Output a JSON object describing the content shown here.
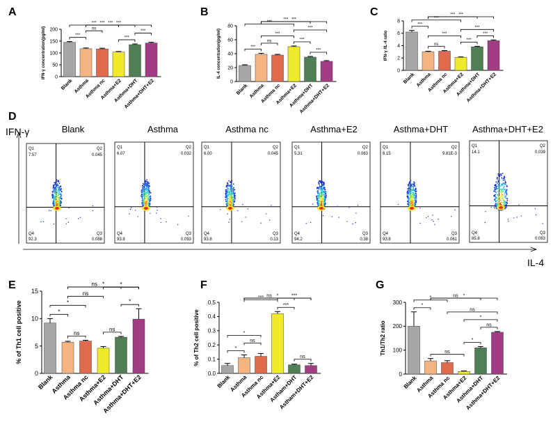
{
  "panel_letters": {
    "A": "A",
    "B": "B",
    "C": "C",
    "D": "D",
    "E": "E",
    "F": "F",
    "G": "G"
  },
  "chart_data": [
    {
      "id": "A",
      "type": "bar",
      "ylabel": "IFN-γ concentration(pg/ml)",
      "categories": [
        "Blank",
        "Asthma",
        "Asthma nc",
        "Asthma+E2",
        "Asthma+DHT",
        "Asthma+DHT+E2"
      ],
      "values": [
        145,
        118,
        117,
        104,
        135,
        142
      ],
      "errors": [
        3,
        3,
        3,
        2,
        3,
        3
      ],
      "colors": [
        "#a6a6a6",
        "#f3b47f",
        "#e06a4c",
        "#f0ea2a",
        "#4f7f55",
        "#a23c84"
      ],
      "ylim": [
        0,
        200
      ],
      "yticks": [
        0,
        50,
        100,
        150,
        200
      ],
      "brackets": [
        {
          "a": 0,
          "b": 1,
          "label": "***"
        },
        {
          "a": 0,
          "b": 3,
          "label": "***"
        },
        {
          "a": 1,
          "b": 2,
          "label": "ns"
        },
        {
          "a": 1,
          "b": 3,
          "label": "***"
        },
        {
          "a": 1,
          "b": 4,
          "label": "***"
        },
        {
          "a": 1,
          "b": 5,
          "label": "***"
        },
        {
          "a": 3,
          "b": 4,
          "label": "***"
        },
        {
          "a": 4,
          "b": 5,
          "label": "***"
        }
      ]
    },
    {
      "id": "B",
      "type": "bar",
      "ylabel": "IL-4 concentration(pg/ml)",
      "categories": [
        "Blank",
        "Asthma",
        "Asthma nc",
        "Asthma+E2",
        "Asthma+DHT",
        "Asthma+DHT+E2"
      ],
      "values": [
        23,
        39,
        38,
        50,
        35,
        29
      ],
      "errors": [
        1,
        1.5,
        1,
        1,
        1,
        1
      ],
      "colors": [
        "#a6a6a6",
        "#f3b47f",
        "#e06a4c",
        "#f0ea2a",
        "#4f7f55",
        "#a23c84"
      ],
      "ylim": [
        0,
        80
      ],
      "yticks": [
        0,
        20,
        40,
        60,
        80
      ],
      "brackets": [
        {
          "a": 0,
          "b": 1,
          "label": "***"
        },
        {
          "a": 0,
          "b": 3,
          "label": "***"
        },
        {
          "a": 1,
          "b": 2,
          "label": "ns"
        },
        {
          "a": 1,
          "b": 3,
          "label": "***"
        },
        {
          "a": 1,
          "b": 4,
          "label": "***"
        },
        {
          "a": 1,
          "b": 5,
          "label": "***"
        },
        {
          "a": 3,
          "b": 4,
          "label": "***"
        },
        {
          "a": 3,
          "b": 5,
          "label": "***"
        },
        {
          "a": 4,
          "b": 5,
          "label": "***"
        }
      ]
    },
    {
      "id": "C",
      "type": "bar",
      "ylabel": "IFN-γ /IL-4 ratio",
      "categories": [
        "Blank",
        "Asthma",
        "Asthma nc",
        "Asthma+E2",
        "Asthma+DHT",
        "Asthma+DHT+E2"
      ],
      "values": [
        6.2,
        3.0,
        3.1,
        2.1,
        3.8,
        4.8
      ],
      "errors": [
        0.25,
        0.1,
        0.1,
        0.08,
        0.1,
        0.12
      ],
      "colors": [
        "#a6a6a6",
        "#f3b47f",
        "#e06a4c",
        "#f0ea2a",
        "#4f7f55",
        "#a23c84"
      ],
      "ylim": [
        0,
        8
      ],
      "yticks": [
        0,
        2,
        4,
        6,
        8
      ],
      "brackets": [
        {
          "a": 0,
          "b": 1,
          "label": "***"
        },
        {
          "a": 0,
          "b": 3,
          "label": "***"
        },
        {
          "a": 1,
          "b": 2,
          "label": "ns"
        },
        {
          "a": 1,
          "b": 3,
          "label": "***"
        },
        {
          "a": 1,
          "b": 4,
          "label": "***"
        },
        {
          "a": 1,
          "b": 5,
          "label": "***"
        },
        {
          "a": 3,
          "b": 4,
          "label": "***"
        },
        {
          "a": 3,
          "b": 5,
          "label": "***"
        },
        {
          "a": 4,
          "b": 5,
          "label": "***"
        }
      ]
    },
    {
      "id": "E",
      "type": "bar",
      "ylabel": "% of Th1 cell positive",
      "categories": [
        "Blank",
        "Asthma",
        "Asthma nc",
        "Asthma+E2",
        "Asthma+DHT",
        "Asthma+DHT+E2"
      ],
      "values": [
        9.2,
        5.7,
        5.9,
        4.6,
        6.6,
        9.9
      ],
      "errors": [
        0.8,
        0.15,
        0.15,
        0.3,
        0.15,
        1.9
      ],
      "colors": [
        "#a6a6a6",
        "#f3b47f",
        "#e06a4c",
        "#f0ea2a",
        "#4f7f55",
        "#a23c84"
      ],
      "ylim": [
        0,
        15
      ],
      "yticks": [
        0,
        5,
        10,
        15
      ],
      "brackets": [
        {
          "a": 0,
          "b": 1,
          "label": "*"
        },
        {
          "a": 0,
          "b": 2,
          "label": "*"
        },
        {
          "a": 1,
          "b": 2,
          "label": "ns"
        },
        {
          "a": 1,
          "b": 3,
          "label": "ns"
        },
        {
          "a": 1,
          "b": 4,
          "label": "ns"
        },
        {
          "a": 1,
          "b": 5,
          "label": "*"
        },
        {
          "a": 3,
          "b": 4,
          "label": "ns"
        },
        {
          "a": 4,
          "b": 5,
          "label": "*"
        },
        {
          "a": 3,
          "b": 5,
          "label": "*"
        }
      ]
    },
    {
      "id": "F",
      "type": "bar",
      "ylabel": "% of Th2 cell positive",
      "categories": [
        "Blank",
        "Asthma",
        "Asthma nc",
        "Asthma+E2",
        "Astham+DHT",
        "Astham+DHT+E2"
      ],
      "values": [
        0.055,
        0.11,
        0.12,
        0.42,
        0.06,
        0.055
      ],
      "errors": [
        0.015,
        0.02,
        0.02,
        0.015,
        0.005,
        0.015
      ],
      "colors": [
        "#a6a6a6",
        "#f3b47f",
        "#e06a4c",
        "#f0ea2a",
        "#4f7f55",
        "#a23c84"
      ],
      "ylim": [
        0,
        0.5
      ],
      "yticks": [
        0.0,
        0.1,
        0.2,
        0.3,
        0.4,
        0.5
      ],
      "brackets": [
        {
          "a": 0,
          "b": 1,
          "label": "*"
        },
        {
          "a": 0,
          "b": 2,
          "label": "*"
        },
        {
          "a": 1,
          "b": 2,
          "label": "ns"
        },
        {
          "a": 1,
          "b": 3,
          "label": "***"
        },
        {
          "a": 3,
          "b": 4,
          "label": "***"
        },
        {
          "a": 3,
          "b": 5,
          "label": "***"
        },
        {
          "a": 1,
          "b": 4,
          "label": "ns"
        },
        {
          "a": 1,
          "b": 5,
          "label": "*"
        },
        {
          "a": 4,
          "b": 5,
          "label": "ns"
        }
      ]
    },
    {
      "id": "G",
      "type": "bar",
      "ylabel": "Th1/Th2 ratio",
      "categories": [
        "Blank",
        "Asthma",
        "Asthma nc",
        "Asthma+E2",
        "Asthma+DHT",
        "Asthma+DHT+E2"
      ],
      "values": [
        200,
        55,
        48,
        11,
        110,
        175
      ],
      "errors": [
        60,
        10,
        8,
        2,
        5,
        3
      ],
      "colors": [
        "#a6a6a6",
        "#f3b47f",
        "#e06a4c",
        "#f0ea2a",
        "#4f7f55",
        "#a23c84"
      ],
      "ylim": [
        0,
        300
      ],
      "yticks": [
        0,
        100,
        200,
        300
      ],
      "brackets": [
        {
          "a": 0,
          "b": 1,
          "label": "*"
        },
        {
          "a": 0,
          "b": 2,
          "label": "*"
        },
        {
          "a": 1,
          "b": 5,
          "label": "*"
        },
        {
          "a": 1,
          "b": 3,
          "label": "ns"
        },
        {
          "a": 1,
          "b": 4,
          "label": "ns"
        },
        {
          "a": 3,
          "b": 4,
          "label": "*"
        },
        {
          "a": 2,
          "b": 5,
          "label": "ns"
        },
        {
          "a": 3,
          "b": 5,
          "label": "*"
        },
        {
          "a": 4,
          "b": 5,
          "label": "ns"
        }
      ]
    }
  ],
  "flow": {
    "y_axis_label": "IFN-γ",
    "x_axis_label": "IL-4",
    "plots": [
      {
        "title": "Blank",
        "q1_label": "Q1",
        "q2_label": "Q2",
        "q3_label": "Q3",
        "q4_label": "Q4",
        "q1": "7.57",
        "q2": "0.045",
        "q3": "0.088",
        "q4": "92.3"
      },
      {
        "title": "Asthma",
        "q1_label": "Q1",
        "q2_label": "Q2",
        "q3_label": "Q3",
        "q4_label": "Q4",
        "q1": "6.07",
        "q2": "0.032",
        "q3": "0.093",
        "q4": "93.8"
      },
      {
        "title": "Asthma nc",
        "q1_label": "Q1",
        "q2_label": "Q2",
        "q3_label": "Q3",
        "q4_label": "Q4",
        "q1": "6.00",
        "q2": "0.045",
        "q3": "0.13",
        "q4": "93.8"
      },
      {
        "title": "Asthma+E2",
        "q1_label": "Q1",
        "q2_label": "Q2",
        "q3_label": "Q3",
        "q4_label": "Q4",
        "q1": "5.31",
        "q2": "0.063",
        "q3": "0.38",
        "q4": "94.2"
      },
      {
        "title": "Asthma+DHT",
        "q1_label": "Q1",
        "q2_label": "Q2",
        "q3_label": "Q3",
        "q4_label": "Q4",
        "q1": "6.15",
        "q2": "9.81E-3",
        "q3": "0.061",
        "q4": "93.8"
      },
      {
        "title": "Asthma+DHT+E2",
        "q1_label": "Q1",
        "q2_label": "Q2",
        "q3_label": "Q3",
        "q4_label": "Q4",
        "q1": "14.1",
        "q2": "0.039",
        "q3": "0.083",
        "q4": "85.8"
      }
    ]
  }
}
